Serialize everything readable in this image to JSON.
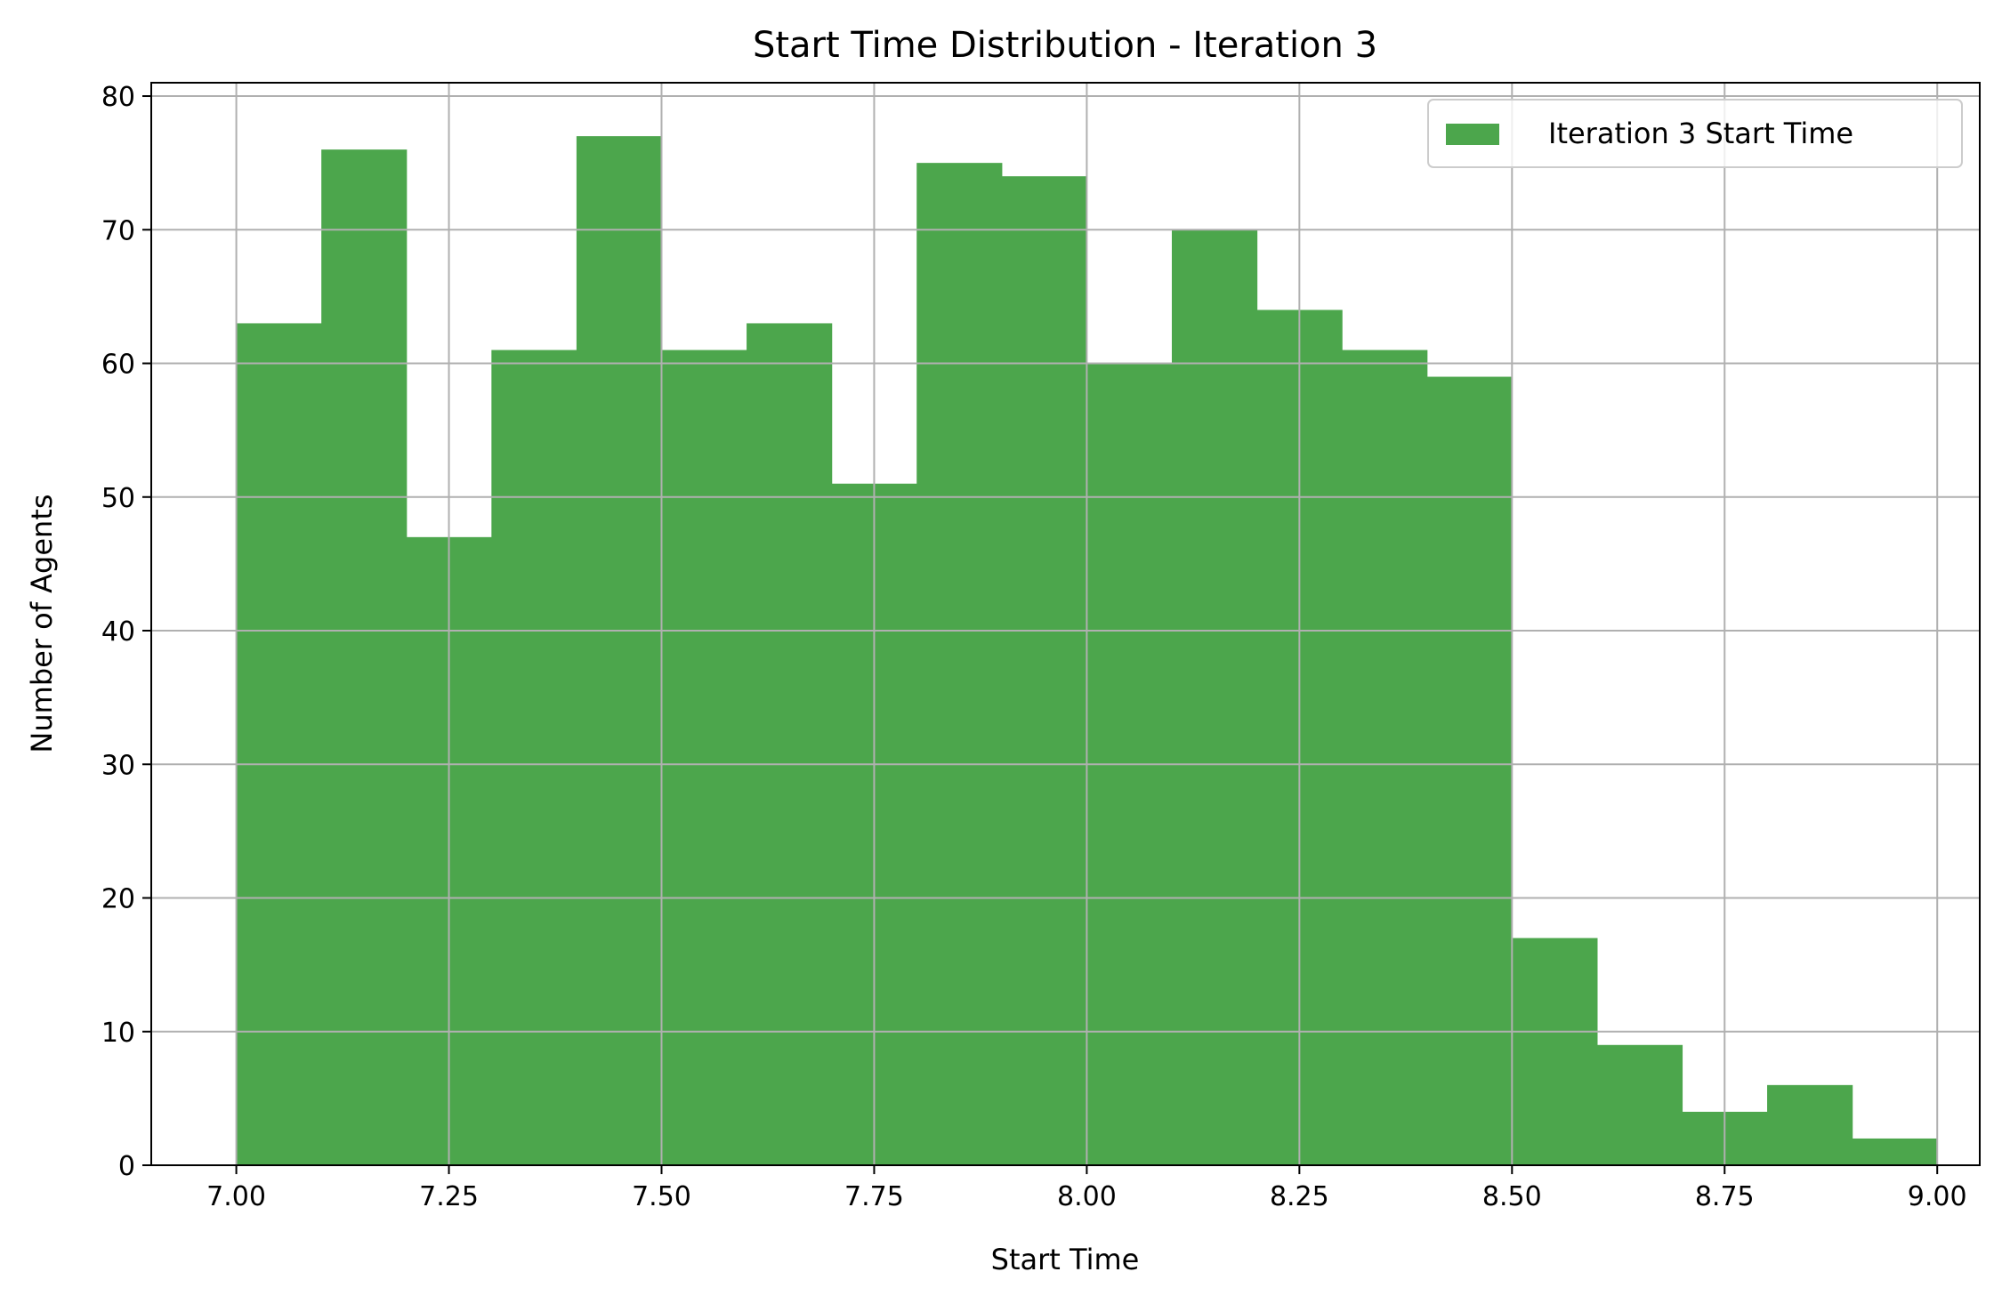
{
  "chart_data": {
    "type": "bar",
    "title": "Start Time Distribution - Iteration 3",
    "xlabel": "Start Time",
    "ylabel": "Number of Agents",
    "xlim": [
      6.9,
      9.05
    ],
    "ylim": [
      0,
      81
    ],
    "grid": true,
    "legend_position": "top-right",
    "bar_color": "#4ca64c",
    "bin_edges": [
      7.0,
      7.1,
      7.2,
      7.3,
      7.4,
      7.5,
      7.6,
      7.7,
      7.8,
      7.9,
      8.0,
      8.1,
      8.2,
      8.3,
      8.4,
      8.5,
      8.6,
      8.7,
      8.8,
      8.9,
      9.0
    ],
    "values": [
      63,
      76,
      47,
      61,
      77,
      61,
      63,
      51,
      75,
      74,
      60,
      70,
      64,
      61,
      59,
      17,
      9,
      4,
      6,
      2
    ],
    "x_ticks": [
      7.0,
      7.25,
      7.5,
      7.75,
      8.0,
      8.25,
      8.5,
      8.75,
      9.0
    ],
    "x_tick_labels": [
      "7.00",
      "7.25",
      "7.50",
      "7.75",
      "8.00",
      "8.25",
      "8.50",
      "8.75",
      "9.00"
    ],
    "y_ticks": [
      0,
      10,
      20,
      30,
      40,
      50,
      60,
      70,
      80
    ],
    "y_tick_labels": [
      "0",
      "10",
      "20",
      "30",
      "40",
      "50",
      "60",
      "70",
      "80"
    ],
    "series": [
      {
        "name": "Iteration 3 Start Time",
        "color": "#4ca64c"
      }
    ]
  }
}
